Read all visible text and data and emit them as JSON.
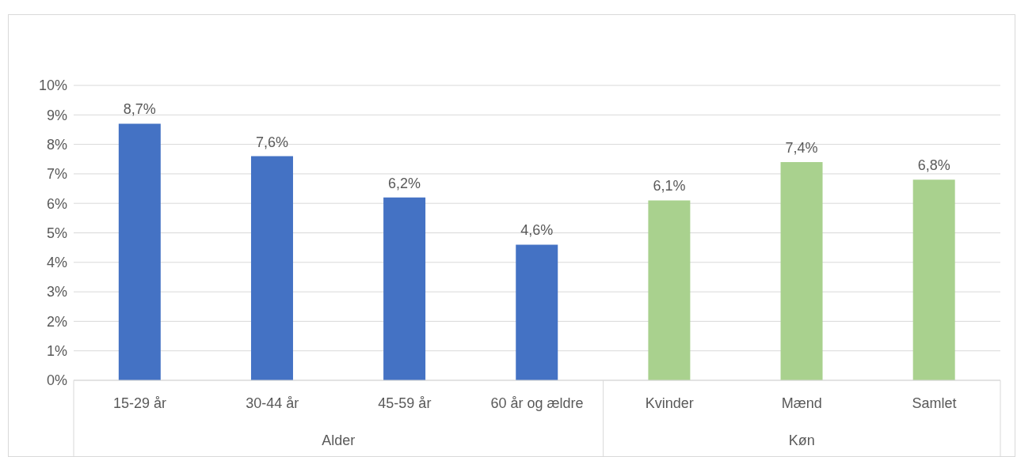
{
  "chart_data": {
    "type": "bar",
    "categories": [
      "15-29 år",
      "30-44 år",
      "45-59 år",
      "60 år og ældre",
      "Kvinder",
      "Mænd",
      "Samlet"
    ],
    "values": [
      8.7,
      7.6,
      6.2,
      4.6,
      6.1,
      7.4,
      6.8
    ],
    "colors": [
      "#4472c4",
      "#4472c4",
      "#4472c4",
      "#4472c4",
      "#a9d18e",
      "#a9d18e",
      "#a9d18e"
    ],
    "value_labels": [
      "8,7%",
      "7,6%",
      "6,2%",
      "4,6%",
      "6,1%",
      "7,4%",
      "6,8%"
    ],
    "ylim": [
      0,
      10
    ],
    "yticks": [
      {
        "value": 0,
        "label": "0%"
      },
      {
        "value": 1,
        "label": "1%"
      },
      {
        "value": 2,
        "label": "2%"
      },
      {
        "value": 3,
        "label": "3%"
      },
      {
        "value": 4,
        "label": "4%"
      },
      {
        "value": 5,
        "label": "5%"
      },
      {
        "value": 6,
        "label": "6%"
      },
      {
        "value": 7,
        "label": "7%"
      },
      {
        "value": 8,
        "label": "8%"
      },
      {
        "value": 9,
        "label": "9%"
      },
      {
        "value": 10,
        "label": "10%"
      }
    ],
    "grid": "y",
    "annotations": [
      "Alder",
      "Køn"
    ]
  }
}
